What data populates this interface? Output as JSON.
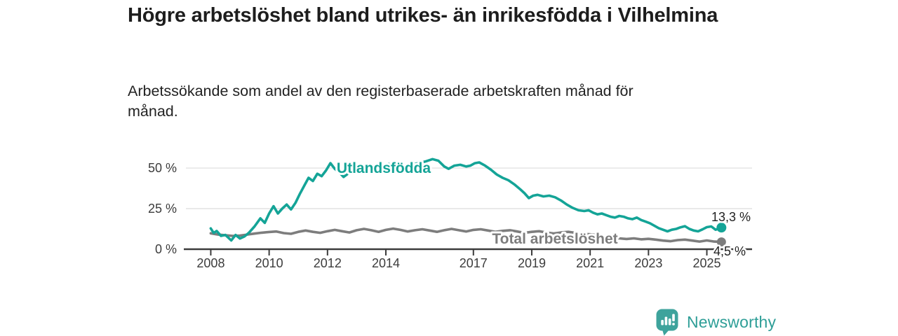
{
  "header": {
    "title": "Högre arbetslöshet bland utrikes- än inrikesfödda i Vilhelmina",
    "subtitle": "Arbetssökande som andel av den registerbaserade arbetskraften månad för månad."
  },
  "footer": {
    "brand": "Newsworthy",
    "logo_icon": "bar-chart-speech-bubble",
    "brand_color": "#2e9e97",
    "logo_fill": "#3ea39c"
  },
  "colors": {
    "accent_teal": "#14a497",
    "series_gray": "#7d7d7d",
    "grid": "#dcdcdc",
    "axis": "#3c3c3c",
    "tick_text": "#3c3c3c",
    "value_text": "#222222",
    "background": "#ffffff"
  },
  "chart_data": {
    "type": "line",
    "title": "Högre arbetslöshet bland utrikes- än inrikesfödda i Vilhelmina",
    "subtitle": "Arbetssökande som andel av den registerbaserade arbetskraften månad för månad.",
    "xlabel": "",
    "ylabel": "",
    "grid": "horizontal",
    "legend": "inline-labels",
    "xlim": [
      2007.1,
      2026.55
    ],
    "ylim": [
      0,
      56.5
    ],
    "x_ticks": [
      2008,
      2010,
      2012,
      2014,
      2017,
      2019,
      2021,
      2023,
      2025
    ],
    "x_tick_labels": [
      "2008",
      "2010",
      "2012",
      "2014",
      "2017",
      "2019",
      "2021",
      "2023",
      "2025"
    ],
    "y_ticks": [
      0,
      25,
      50
    ],
    "y_tick_labels": [
      "0 %",
      "25 %",
      "50 %"
    ],
    "series": [
      {
        "name": "Total arbetslöshet",
        "color": "#7d7d7d",
        "end_value": 4.5,
        "end_label": "4,5 %",
        "x": [
          2008.0,
          2008.25,
          2008.5,
          2008.75,
          2009.0,
          2009.25,
          2009.5,
          2009.75,
          2010.0,
          2010.25,
          2010.5,
          2010.75,
          2011.0,
          2011.25,
          2011.5,
          2011.75,
          2012.0,
          2012.25,
          2012.5,
          2012.75,
          2013.0,
          2013.25,
          2013.5,
          2013.75,
          2014.0,
          2014.25,
          2014.5,
          2014.75,
          2015.0,
          2015.25,
          2015.5,
          2015.75,
          2016.0,
          2016.25,
          2016.5,
          2016.75,
          2017.0,
          2017.25,
          2017.5,
          2017.75,
          2018.0,
          2018.25,
          2018.5,
          2018.75,
          2019.0,
          2019.25,
          2019.5,
          2019.75,
          2020.0,
          2020.25,
          2020.5,
          2020.75,
          2021.0,
          2021.25,
          2021.5,
          2021.75,
          2022.0,
          2022.25,
          2022.5,
          2022.75,
          2023.0,
          2023.25,
          2023.5,
          2023.75,
          2024.0,
          2024.25,
          2024.5,
          2024.75,
          2025.0,
          2025.25,
          2025.5
        ],
        "y": [
          9.8,
          9.0,
          8.6,
          8.2,
          8.4,
          9.0,
          9.6,
          10.2,
          10.6,
          10.9,
          9.9,
          9.5,
          10.7,
          11.5,
          10.7,
          10.1,
          11.1,
          11.9,
          11.1,
          10.3,
          11.7,
          12.5,
          11.7,
          10.7,
          11.9,
          12.7,
          11.9,
          10.9,
          11.7,
          12.3,
          11.5,
          10.7,
          11.7,
          12.5,
          11.7,
          10.9,
          11.9,
          12.3,
          11.5,
          10.7,
          11.3,
          11.7,
          10.9,
          10.1,
          10.7,
          11.1,
          10.3,
          9.7,
          10.3,
          10.7,
          10.1,
          9.5,
          9.2,
          8.7,
          8.0,
          7.3,
          6.7,
          6.3,
          6.7,
          6.1,
          6.4,
          5.9,
          5.3,
          4.9,
          5.6,
          5.9,
          5.3,
          4.7,
          5.4,
          4.7,
          4.5
        ]
      },
      {
        "name": "Utlandsfödda",
        "color": "#14a497",
        "end_value": 13.3,
        "end_label": "13,3 %",
        "x": [
          2008.0,
          2008.1,
          2008.2,
          2008.35,
          2008.5,
          2008.7,
          2008.85,
          2009.0,
          2009.15,
          2009.3,
          2009.5,
          2009.7,
          2009.85,
          2010.0,
          2010.15,
          2010.3,
          2010.45,
          2010.6,
          2010.75,
          2010.9,
          2011.05,
          2011.2,
          2011.35,
          2011.5,
          2011.65,
          2011.8,
          2011.95,
          2012.1,
          2012.25,
          2012.4,
          2012.55,
          2012.7,
          2012.9,
          2013.1,
          2013.3,
          2013.5,
          2013.7,
          2013.9,
          2014.1,
          2014.3,
          2014.5,
          2014.7,
          2014.9,
          2015.1,
          2015.35,
          2015.6,
          2015.8,
          2016.0,
          2016.15,
          2016.35,
          2016.55,
          2016.75,
          2016.9,
          2017.05,
          2017.2,
          2017.4,
          2017.6,
          2017.8,
          2018.0,
          2018.2,
          2018.4,
          2018.6,
          2018.75,
          2018.9,
          2019.05,
          2019.2,
          2019.4,
          2019.6,
          2019.8,
          2020.0,
          2020.2,
          2020.4,
          2020.6,
          2020.8,
          2020.95,
          2021.1,
          2021.25,
          2021.4,
          2021.55,
          2021.7,
          2021.85,
          2022.0,
          2022.15,
          2022.3,
          2022.45,
          2022.6,
          2022.75,
          2022.9,
          2023.05,
          2023.2,
          2023.35,
          2023.5,
          2023.65,
          2023.8,
          2023.95,
          2024.1,
          2024.25,
          2024.4,
          2024.55,
          2024.7,
          2024.85,
          2025.0,
          2025.15,
          2025.3,
          2025.4,
          2025.5
        ],
        "y": [
          12.8,
          10.0,
          11.2,
          8.2,
          8.8,
          5.4,
          8.8,
          6.6,
          7.8,
          10.0,
          14.0,
          19.0,
          16.2,
          22.0,
          26.5,
          22.0,
          25.0,
          27.5,
          24.5,
          28.5,
          34.0,
          39.0,
          44.0,
          42.0,
          46.5,
          45.0,
          48.5,
          53.0,
          49.5,
          47.5,
          44.5,
          46.5,
          48.5,
          50.5,
          49.5,
          51.0,
          50.0,
          51.5,
          52.5,
          51.0,
          52.0,
          50.5,
          52.0,
          53.0,
          54.0,
          55.5,
          54.5,
          51.0,
          49.5,
          51.5,
          52.0,
          51.0,
          51.5,
          53.0,
          53.5,
          51.5,
          49.0,
          46.0,
          44.0,
          42.5,
          40.0,
          37.0,
          34.5,
          31.5,
          33.0,
          33.5,
          32.5,
          33.0,
          32.0,
          30.0,
          27.5,
          25.5,
          24.0,
          23.5,
          24.0,
          22.5,
          21.5,
          22.0,
          21.0,
          20.0,
          19.5,
          20.5,
          20.0,
          19.0,
          18.5,
          19.5,
          18.0,
          17.0,
          16.0,
          14.5,
          13.0,
          12.0,
          11.0,
          12.0,
          12.5,
          13.5,
          14.2,
          12.5,
          11.5,
          11.0,
          12.2,
          13.6,
          14.0,
          12.0,
          12.6,
          13.3
        ]
      }
    ]
  }
}
